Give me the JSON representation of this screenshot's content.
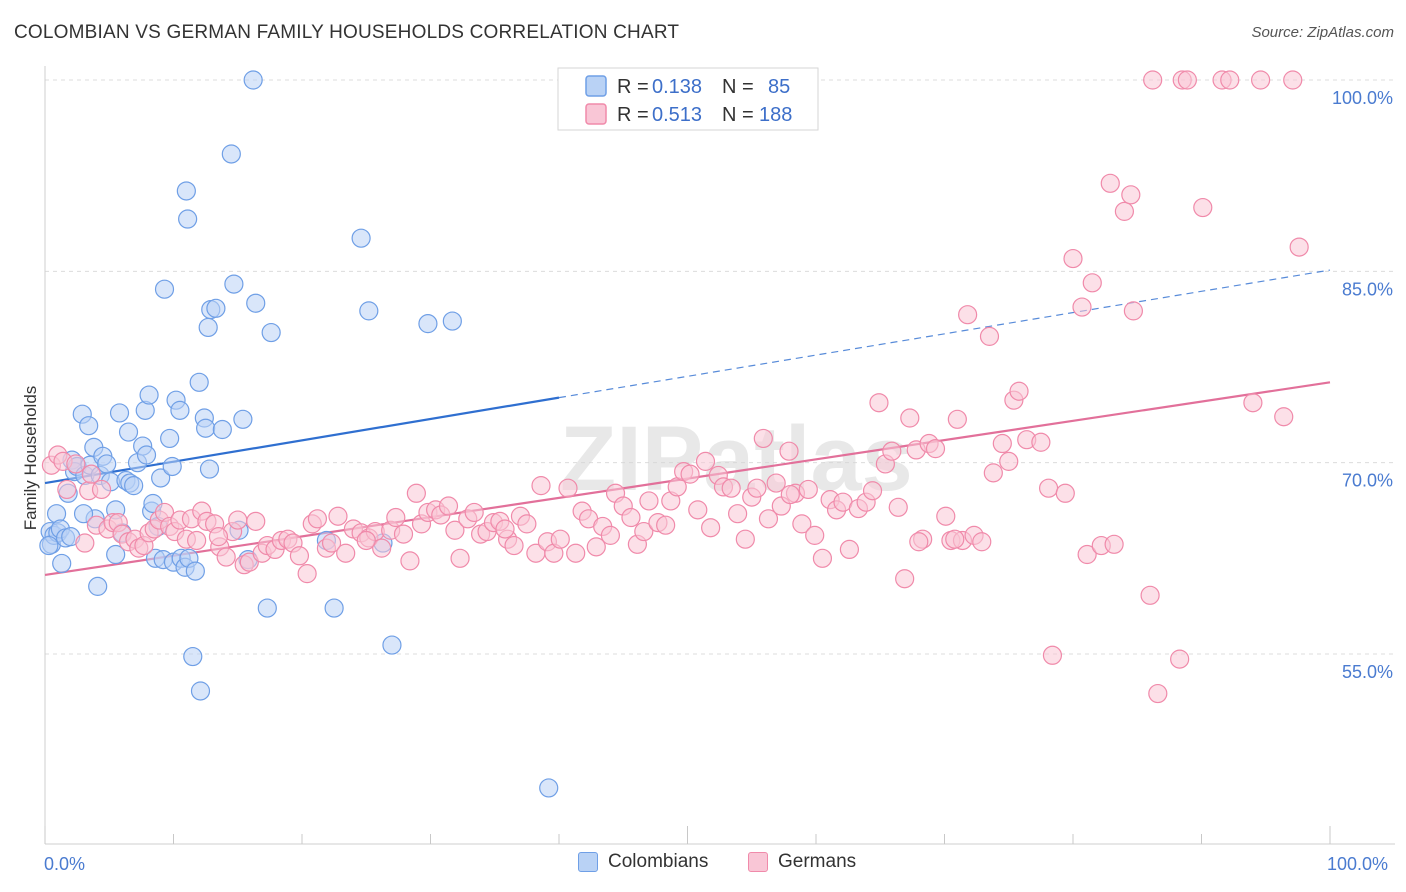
{
  "title": "COLOMBIAN VS GERMAN FAMILY HOUSEHOLDS CORRELATION CHART",
  "source": "Source: ZipAtlas.com",
  "watermark": "ZIPatlas",
  "colors": {
    "colombians": "#6f9fe6",
    "colombians_fill": "#b9d2f5",
    "colombians_line": "#2f6fd0",
    "germans": "#f08aaa",
    "germans_fill": "#f9c6d6",
    "germans_line": "#e2709a",
    "tick": "#4a7bd0"
  },
  "legend": {
    "rows": [
      {
        "r_label": "R = ",
        "r_value": "0.138",
        "n_label": "N = ",
        "n_value": "85"
      },
      {
        "r_label": "R = ",
        "r_value": "0.513",
        "n_label": "N = ",
        "n_value": "188"
      }
    ]
  },
  "bottom_legend": {
    "colombians": "Colombians",
    "germans": "Germans"
  },
  "chart_data": {
    "type": "scatter",
    "title": "COLOMBIAN VS GERMAN FAMILY HOUSEHOLDS CORRELATION CHART",
    "xlabel": "",
    "ylabel": "Family Households",
    "xlim": [
      0,
      100
    ],
    "ylim": [
      40,
      102
    ],
    "x_tick_labels": [
      "0.0%",
      "100.0%"
    ],
    "y_tick_labels": [
      "55.0%",
      "70.0%",
      "85.0%",
      "100.0%"
    ],
    "y_ticks": [
      55,
      70,
      85,
      100
    ],
    "grid": true,
    "legend_position": "top-center",
    "series": [
      {
        "name": "Colombians",
        "R": 0.138,
        "N": 85,
        "trend": {
          "x0": 0,
          "y0": 68.4,
          "x1": 40,
          "y1": 75.1,
          "dashed_to_x": 100,
          "dashed_to_y": 85.1
        },
        "points": [
          [
            0.4,
            64.6
          ],
          [
            0.5,
            63.6
          ],
          [
            0.7,
            64.3
          ],
          [
            0.9,
            66.0
          ],
          [
            1.0,
            64.5
          ],
          [
            1.2,
            64.8
          ],
          [
            1.3,
            62.1
          ],
          [
            1.6,
            64.1
          ],
          [
            1.8,
            67.6
          ],
          [
            2.0,
            64.2
          ],
          [
            2.1,
            70.2
          ],
          [
            2.3,
            69.3
          ],
          [
            2.5,
            69.7
          ],
          [
            2.9,
            73.8
          ],
          [
            3.1,
            69.0
          ],
          [
            3.4,
            72.9
          ],
          [
            3.5,
            69.8
          ],
          [
            3.8,
            71.2
          ],
          [
            3.9,
            65.6
          ],
          [
            4.1,
            60.3
          ],
          [
            4.3,
            69.0
          ],
          [
            4.5,
            70.5
          ],
          [
            4.8,
            69.9
          ],
          [
            5.1,
            68.5
          ],
          [
            5.5,
            66.3
          ],
          [
            5.5,
            62.8
          ],
          [
            5.8,
            73.9
          ],
          [
            6.3,
            68.6
          ],
          [
            6.5,
            72.4
          ],
          [
            6.6,
            68.4
          ],
          [
            6.9,
            68.2
          ],
          [
            7.2,
            70.0
          ],
          [
            7.6,
            71.3
          ],
          [
            7.8,
            74.1
          ],
          [
            7.9,
            70.6
          ],
          [
            8.1,
            75.3
          ],
          [
            8.3,
            66.2
          ],
          [
            8.4,
            66.8
          ],
          [
            8.6,
            62.5
          ],
          [
            9.0,
            68.8
          ],
          [
            9.2,
            62.4
          ],
          [
            9.3,
            83.6
          ],
          [
            9.7,
            71.9
          ],
          [
            9.9,
            69.7
          ],
          [
            10.0,
            62.2
          ],
          [
            10.2,
            74.9
          ],
          [
            10.5,
            74.1
          ],
          [
            10.6,
            62.5
          ],
          [
            10.9,
            61.8
          ],
          [
            11.0,
            91.3
          ],
          [
            11.1,
            89.1
          ],
          [
            11.2,
            62.5
          ],
          [
            11.7,
            61.5
          ],
          [
            11.5,
            54.8
          ],
          [
            12.0,
            76.3
          ],
          [
            12.1,
            52.1
          ],
          [
            12.4,
            73.5
          ],
          [
            12.5,
            72.7
          ],
          [
            12.7,
            80.6
          ],
          [
            12.8,
            69.5
          ],
          [
            12.9,
            82.0
          ],
          [
            13.3,
            82.1
          ],
          [
            13.8,
            72.6
          ],
          [
            14.5,
            94.2
          ],
          [
            14.7,
            84.0
          ],
          [
            15.1,
            64.7
          ],
          [
            15.4,
            73.4
          ],
          [
            15.8,
            62.4
          ],
          [
            16.2,
            100.0
          ],
          [
            16.4,
            82.5
          ],
          [
            17.3,
            58.6
          ],
          [
            17.6,
            80.2
          ],
          [
            21.9,
            63.9
          ],
          [
            22.5,
            58.6
          ],
          [
            24.6,
            87.6
          ],
          [
            25.2,
            81.9
          ],
          [
            26.3,
            63.7
          ],
          [
            27.0,
            55.7
          ],
          [
            29.8,
            80.9
          ],
          [
            31.7,
            81.1
          ],
          [
            39.2,
            44.5
          ],
          [
            0.3,
            63.5
          ],
          [
            3.0,
            66.0
          ],
          [
            6.0,
            64.5
          ],
          [
            8.8,
            65.0
          ]
        ]
      },
      {
        "name": "Germans",
        "R": 0.513,
        "N": 188,
        "trend": {
          "x0": 0,
          "y0": 61.2,
          "x1": 100,
          "y1": 76.3
        },
        "points": [
          [
            0.5,
            69.8
          ],
          [
            1.0,
            70.6
          ],
          [
            1.4,
            70.1
          ],
          [
            1.7,
            67.9
          ],
          [
            2.4,
            69.9
          ],
          [
            3.1,
            63.7
          ],
          [
            3.4,
            67.8
          ],
          [
            3.6,
            69.1
          ],
          [
            4.0,
            65.1
          ],
          [
            4.4,
            67.9
          ],
          [
            4.9,
            64.8
          ],
          [
            5.3,
            65.3
          ],
          [
            5.7,
            65.3
          ],
          [
            6.0,
            64.4
          ],
          [
            6.5,
            63.8
          ],
          [
            7.0,
            64.0
          ],
          [
            7.3,
            63.3
          ],
          [
            7.7,
            63.5
          ],
          [
            8.1,
            64.5
          ],
          [
            8.5,
            64.8
          ],
          [
            8.9,
            65.5
          ],
          [
            9.3,
            66.1
          ],
          [
            9.7,
            65.0
          ],
          [
            10.1,
            64.6
          ],
          [
            10.5,
            65.5
          ],
          [
            11.0,
            64.0
          ],
          [
            11.4,
            65.6
          ],
          [
            11.8,
            63.9
          ],
          [
            12.2,
            66.2
          ],
          [
            12.6,
            65.4
          ],
          [
            13.2,
            65.2
          ],
          [
            13.6,
            63.4
          ],
          [
            14.1,
            62.6
          ],
          [
            14.6,
            64.6
          ],
          [
            15.0,
            65.5
          ],
          [
            15.5,
            62.0
          ],
          [
            15.9,
            62.2
          ],
          [
            16.4,
            65.4
          ],
          [
            16.9,
            62.9
          ],
          [
            17.3,
            63.5
          ],
          [
            17.9,
            63.2
          ],
          [
            18.4,
            63.9
          ],
          [
            18.9,
            64.0
          ],
          [
            19.3,
            63.7
          ],
          [
            19.8,
            62.7
          ],
          [
            20.4,
            61.3
          ],
          [
            20.8,
            65.2
          ],
          [
            21.2,
            65.6
          ],
          [
            21.9,
            63.3
          ],
          [
            22.3,
            63.7
          ],
          [
            22.8,
            65.8
          ],
          [
            23.4,
            62.9
          ],
          [
            24.0,
            64.8
          ],
          [
            24.6,
            64.5
          ],
          [
            25.2,
            64.1
          ],
          [
            25.7,
            64.6
          ],
          [
            26.2,
            63.3
          ],
          [
            26.9,
            64.7
          ],
          [
            27.3,
            65.7
          ],
          [
            27.9,
            64.4
          ],
          [
            28.4,
            62.3
          ],
          [
            28.9,
            67.6
          ],
          [
            29.3,
            65.2
          ],
          [
            29.8,
            66.1
          ],
          [
            30.4,
            66.3
          ],
          [
            30.8,
            65.9
          ],
          [
            31.4,
            66.6
          ],
          [
            31.9,
            64.7
          ],
          [
            32.3,
            62.5
          ],
          [
            32.9,
            65.6
          ],
          [
            33.4,
            66.1
          ],
          [
            33.9,
            64.4
          ],
          [
            34.4,
            64.6
          ],
          [
            34.9,
            65.3
          ],
          [
            35.4,
            65.4
          ],
          [
            36.0,
            64.0
          ],
          [
            36.5,
            63.5
          ],
          [
            37.0,
            65.8
          ],
          [
            37.5,
            65.2
          ],
          [
            38.2,
            62.9
          ],
          [
            38.6,
            68.2
          ],
          [
            39.1,
            63.8
          ],
          [
            39.6,
            62.9
          ],
          [
            40.1,
            64.0
          ],
          [
            40.7,
            68.0
          ],
          [
            41.3,
            62.9
          ],
          [
            41.8,
            66.2
          ],
          [
            42.3,
            65.6
          ],
          [
            42.9,
            63.4
          ],
          [
            43.4,
            65.0
          ],
          [
            44.0,
            64.3
          ],
          [
            44.4,
            67.6
          ],
          [
            45.0,
            66.6
          ],
          [
            45.6,
            65.7
          ],
          [
            46.1,
            63.6
          ],
          [
            46.6,
            64.6
          ],
          [
            47.0,
            67.0
          ],
          [
            47.7,
            65.3
          ],
          [
            48.3,
            65.1
          ],
          [
            48.7,
            67.0
          ],
          [
            49.2,
            68.1
          ],
          [
            49.7,
            69.3
          ],
          [
            50.2,
            69.1
          ],
          [
            50.8,
            66.3
          ],
          [
            51.4,
            70.1
          ],
          [
            51.8,
            64.9
          ],
          [
            52.4,
            69.0
          ],
          [
            52.8,
            68.1
          ],
          [
            53.4,
            68.0
          ],
          [
            53.9,
            66.0
          ],
          [
            54.5,
            64.0
          ],
          [
            55.0,
            67.3
          ],
          [
            55.4,
            68.0
          ],
          [
            55.9,
            71.9
          ],
          [
            56.3,
            65.6
          ],
          [
            56.9,
            68.4
          ],
          [
            57.3,
            66.6
          ],
          [
            57.9,
            70.9
          ],
          [
            58.4,
            67.6
          ],
          [
            58.9,
            65.2
          ],
          [
            59.4,
            67.9
          ],
          [
            59.9,
            64.3
          ],
          [
            60.5,
            62.5
          ],
          [
            61.1,
            67.1
          ],
          [
            61.6,
            66.3
          ],
          [
            62.1,
            66.9
          ],
          [
            62.6,
            63.2
          ],
          [
            63.3,
            66.4
          ],
          [
            63.9,
            66.9
          ],
          [
            64.4,
            67.8
          ],
          [
            64.9,
            74.7
          ],
          [
            65.4,
            69.9
          ],
          [
            65.9,
            70.9
          ],
          [
            66.4,
            66.5
          ],
          [
            66.9,
            60.9
          ],
          [
            67.3,
            73.5
          ],
          [
            67.8,
            71.0
          ],
          [
            68.3,
            64.0
          ],
          [
            68.8,
            71.5
          ],
          [
            69.3,
            71.1
          ],
          [
            70.1,
            65.8
          ],
          [
            70.5,
            63.9
          ],
          [
            71.0,
            73.4
          ],
          [
            71.4,
            63.9
          ],
          [
            71.8,
            81.6
          ],
          [
            72.3,
            64.3
          ],
          [
            72.9,
            63.8
          ],
          [
            73.5,
            79.9
          ],
          [
            73.8,
            69.2
          ],
          [
            74.5,
            71.5
          ],
          [
            75.0,
            70.1
          ],
          [
            75.4,
            74.9
          ],
          [
            75.8,
            75.6
          ],
          [
            76.4,
            71.8
          ],
          [
            77.5,
            71.6
          ],
          [
            78.1,
            68.0
          ],
          [
            78.4,
            54.9
          ],
          [
            79.4,
            67.6
          ],
          [
            80.0,
            86.0
          ],
          [
            80.7,
            82.2
          ],
          [
            81.1,
            62.8
          ],
          [
            81.5,
            84.1
          ],
          [
            82.2,
            63.5
          ],
          [
            82.9,
            91.9
          ],
          [
            83.2,
            63.6
          ],
          [
            84.0,
            89.7
          ],
          [
            84.5,
            91.0
          ],
          [
            84.7,
            81.9
          ],
          [
            86.0,
            59.6
          ],
          [
            86.2,
            100.0
          ],
          [
            86.6,
            51.9
          ],
          [
            88.3,
            54.6
          ],
          [
            88.5,
            100.0
          ],
          [
            88.9,
            100.0
          ],
          [
            90.1,
            90.0
          ],
          [
            91.6,
            100.0
          ],
          [
            92.2,
            100.0
          ],
          [
            94.0,
            74.7
          ],
          [
            94.6,
            100.0
          ],
          [
            96.4,
            73.6
          ],
          [
            97.1,
            100.0
          ],
          [
            97.6,
            86.9
          ],
          [
            68.0,
            63.8
          ],
          [
            70.8,
            64.0
          ],
          [
            13.5,
            64.2
          ],
          [
            25.0,
            63.9
          ],
          [
            35.8,
            64.8
          ],
          [
            58.0,
            67.5
          ]
        ]
      }
    ]
  }
}
